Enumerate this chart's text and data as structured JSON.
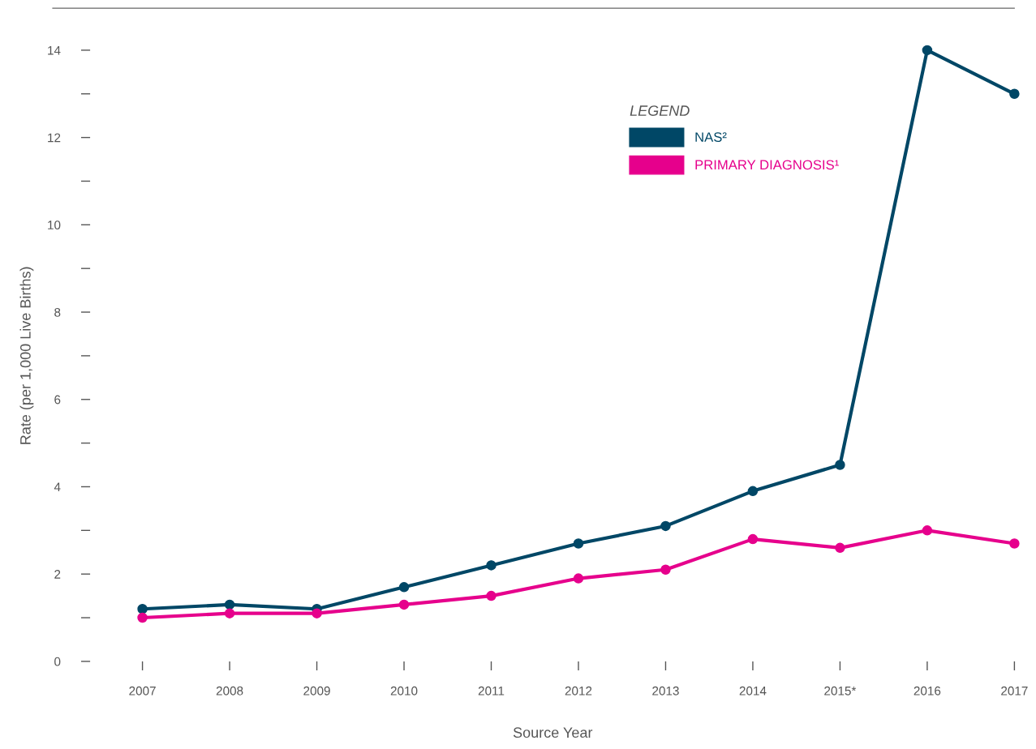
{
  "chart_data": {
    "type": "line",
    "xlabel": "Source Year",
    "ylabel": "Rate (per 1,000 Live Births)",
    "categories": [
      "2007",
      "2008",
      "2009",
      "2010",
      "2011",
      "2012",
      "2013",
      "2014",
      "2015*",
      "2016",
      "2017"
    ],
    "series": [
      {
        "name": "NAS²",
        "color": "#004766",
        "values": [
          1.2,
          1.3,
          1.2,
          1.7,
          2.2,
          2.7,
          3.1,
          3.9,
          4.5,
          14.0,
          13.0
        ]
      },
      {
        "name": "PRIMARY DIAGNOSIS¹",
        "color": "#e6008c",
        "values": [
          1.0,
          1.1,
          1.1,
          1.3,
          1.5,
          1.9,
          2.1,
          2.8,
          2.6,
          3.0,
          2.7
        ]
      }
    ],
    "ylim": [
      0,
      14
    ],
    "yticks": [
      0,
      {
        "value": 1,
        "label": null
      },
      2,
      {
        "value": 3,
        "label": null
      },
      4,
      {
        "value": 5,
        "label": null
      },
      6,
      {
        "value": 7,
        "label": null
      },
      8,
      {
        "value": 9,
        "label": null
      },
      10,
      {
        "value": 11,
        "label": null
      },
      12,
      {
        "value": 13,
        "label": null
      },
      14
    ],
    "legend_title": "LEGEND",
    "legend": "top right",
    "grid": false,
    "marker": "circle",
    "line_style": "solid"
  }
}
